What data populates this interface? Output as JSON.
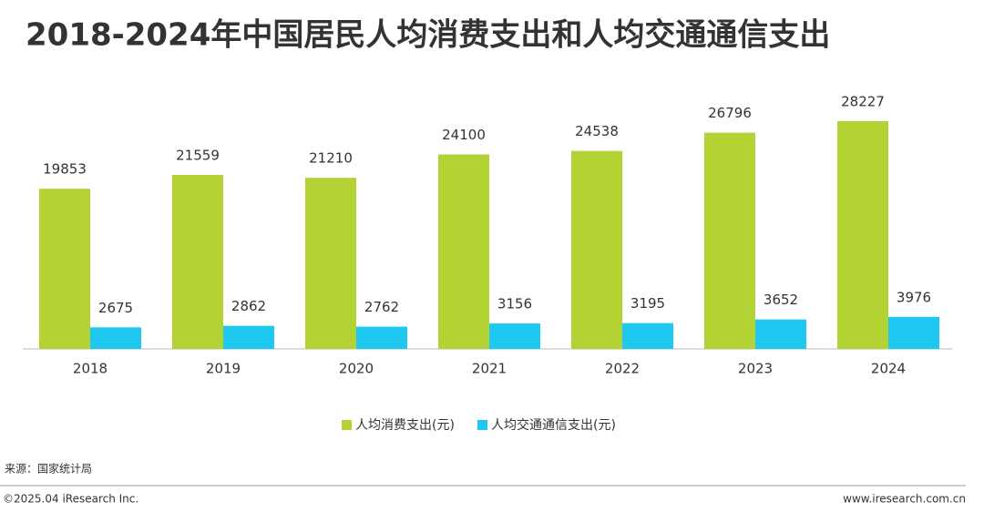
{
  "chart_data": {
    "type": "bar",
    "title": "2018-2024年中国居民人均消费支出和人均交通通信支出",
    "categories": [
      "2018",
      "2019",
      "2020",
      "2021",
      "2022",
      "2023",
      "2024"
    ],
    "series": [
      {
        "name": "人均消费支出(元)",
        "color": "#b3d334",
        "values": [
          19853,
          21559,
          21210,
          24100,
          24538,
          26796,
          28227
        ]
      },
      {
        "name": "人均交通通信支出(元)",
        "color": "#1ec8f0",
        "values": [
          2675,
          2862,
          2762,
          3156,
          3195,
          3652,
          3976
        ]
      }
    ],
    "legend": "bottom"
  },
  "source": "来源：国家统计局",
  "footer_left": "©2025.04 iResearch Inc.",
  "footer_right": "www.iresearch.com.cn"
}
